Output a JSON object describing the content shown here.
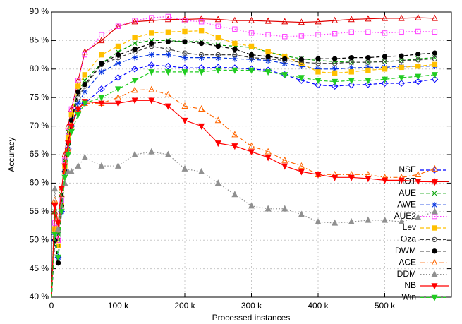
{
  "chart_data": {
    "type": "line",
    "ylabel": "Accuracy",
    "xlabel": "Processed instances",
    "x": [
      0,
      5000,
      10000,
      15000,
      20000,
      25000,
      30000,
      40000,
      50000,
      75000,
      100000,
      125000,
      150000,
      175000,
      200000,
      225000,
      250000,
      275000,
      300000,
      325000,
      350000,
      375000,
      400000,
      425000,
      450000,
      475000,
      500000,
      525000,
      550000,
      575000
    ],
    "xlim": [
      0,
      600000
    ],
    "xticks": [
      0,
      {
        "value": 100000,
        "label": "100 k"
      },
      {
        "value": 200000,
        "label": "200 k"
      },
      {
        "value": 300000,
        "label": "300 k"
      },
      {
        "value": 400000,
        "label": "400 k"
      },
      {
        "value": 500000,
        "label": "500 k"
      }
    ],
    "ylim": [
      40,
      90
    ],
    "yticks": [
      {
        "value": 40,
        "label": "40 %"
      },
      {
        "value": 45,
        "label": "45 %"
      },
      {
        "value": 50,
        "label": "50 %"
      },
      {
        "value": 55,
        "label": "55 %"
      },
      {
        "value": 60,
        "label": "60 %"
      },
      {
        "value": 65,
        "label": "65 %"
      },
      {
        "value": 70,
        "label": "70 %"
      },
      {
        "value": 75,
        "label": "75 %"
      },
      {
        "value": 80,
        "label": "80 %"
      },
      {
        "value": 85,
        "label": "85 %"
      },
      {
        "value": 90,
        "label": "90 %"
      }
    ],
    "grid": true,
    "legend": "right",
    "series": [
      {
        "name": "NSE",
        "color": "#0000ff",
        "marker": "diamond-open",
        "dash": "dashed",
        "values": [
          40,
          50,
          47,
          55,
          62,
          66,
          70,
          73,
          74,
          76.5,
          78.5,
          80,
          80.7,
          80.5,
          80.2,
          80.2,
          80.3,
          80.2,
          80,
          79.8,
          79,
          78,
          77.2,
          77,
          77.2,
          77.3,
          77.5,
          77.5,
          77.8,
          78.2
        ]
      },
      {
        "name": "HOT",
        "color": "#e00000",
        "marker": "triangle-open",
        "dash": "solid",
        "values": [
          40,
          55,
          50,
          58,
          65,
          70,
          73,
          78,
          83,
          85,
          87.5,
          88.3,
          88.5,
          88.7,
          88.7,
          88.8,
          88.7,
          88.5,
          88.5,
          88.4,
          88.3,
          88.2,
          88.3,
          88.5,
          88.7,
          88.8,
          88.9,
          88.9,
          89,
          88.9
        ]
      },
      {
        "name": "AUE",
        "color": "#00a000",
        "marker": "x",
        "dash": "dashed",
        "values": [
          40,
          55,
          51,
          58,
          64,
          69,
          72,
          76,
          78,
          81,
          83,
          84.5,
          85,
          85,
          84.8,
          84.8,
          84.2,
          84,
          83.8,
          83,
          82.3,
          81.8,
          81.5,
          81.3,
          81.2,
          81.2,
          81.3,
          81.5,
          81.8,
          82
        ]
      },
      {
        "name": "AWE",
        "color": "#0030e0",
        "marker": "star",
        "dash": "dashed",
        "values": [
          40,
          51,
          47,
          55,
          62,
          67,
          70,
          74,
          76,
          79.5,
          81,
          82,
          82.5,
          82.5,
          82,
          82,
          82,
          81.8,
          81.7,
          81.5,
          81,
          80.5,
          80,
          80,
          80.2,
          80.3,
          80.3,
          80.5,
          80.5,
          80.5
        ]
      },
      {
        "name": "AUE2",
        "color": "#ff40ff",
        "marker": "square-open",
        "dash": "dotted",
        "values": [
          40,
          53,
          50,
          57,
          64,
          69,
          73,
          78,
          82.5,
          86,
          87.5,
          88.5,
          89,
          89.2,
          88.5,
          88.3,
          87.5,
          87,
          86.3,
          86,
          85.7,
          85.8,
          86,
          86.2,
          86.5,
          86.5,
          86.3,
          86.5,
          86.6,
          86.5
        ]
      },
      {
        "name": "Lev",
        "color": "#ffc000",
        "marker": "square-filled",
        "dash": "dashed",
        "values": [
          40,
          52,
          49,
          56,
          63,
          68,
          72,
          77,
          79,
          82.5,
          84,
          85.5,
          86.3,
          86.5,
          86.6,
          86.7,
          85.5,
          84.5,
          84,
          83,
          82.2,
          81,
          79.5,
          79.3,
          79.5,
          79.8,
          80,
          80.3,
          80.5,
          80.8
        ]
      },
      {
        "name": "Oza",
        "color": "#404040",
        "marker": "circle-open",
        "dash": "dashed",
        "values": [
          40,
          50,
          46,
          56,
          62,
          67,
          71,
          75,
          77,
          80.8,
          82,
          83,
          84,
          83.5,
          82.8,
          82.5,
          82.5,
          82.5,
          82,
          81.8,
          81.5,
          81.2,
          81,
          81,
          81.2,
          81.2,
          81.3,
          81.5,
          81.6,
          81.8
        ]
      },
      {
        "name": "DWM",
        "color": "#000000",
        "marker": "circle-filled",
        "dash": "dashed",
        "values": [
          40,
          50,
          46,
          56,
          62,
          67,
          71,
          76,
          77.3,
          81,
          82.5,
          83.5,
          84.5,
          84.8,
          84.8,
          84.5,
          84,
          83.5,
          82.5,
          82.2,
          81.8,
          81.7,
          81.8,
          81.8,
          82,
          82,
          82.2,
          82.3,
          82.6,
          82.8
        ]
      },
      {
        "name": "ACE",
        "color": "#ff6600",
        "marker": "triangle-open",
        "dash": "dashdot",
        "values": [
          40,
          57,
          52,
          59,
          62,
          66,
          70,
          73,
          74,
          74,
          75,
          76.3,
          76.4,
          75.5,
          73.5,
          73,
          71,
          68.5,
          66.5,
          65.5,
          64,
          63,
          61.5,
          61.5,
          61.5,
          61.5,
          61,
          61,
          61.5,
          62.5
        ]
      },
      {
        "name": "DDM",
        "color": "#909090",
        "marker": "triangle-filled",
        "dash": "dotted",
        "values": [
          40,
          59,
          52,
          56,
          60,
          62,
          62,
          63,
          64.5,
          63,
          63,
          65,
          65.5,
          65,
          62.5,
          62,
          60,
          58,
          56,
          55.5,
          55.5,
          54.5,
          53.2,
          53,
          53.2,
          53.5,
          53.5,
          53.2,
          54,
          55
        ]
      },
      {
        "name": "NB",
        "color": "#ff0000",
        "marker": "invtriangle-filled",
        "dash": "solid",
        "values": [
          40,
          56,
          53,
          59,
          63,
          67,
          70,
          73,
          74.3,
          74,
          74,
          74.5,
          74.5,
          73.5,
          71,
          70,
          67,
          66.5,
          65.5,
          64.5,
          63,
          62,
          61.5,
          61,
          61,
          60.8,
          60.5,
          60.5,
          60.3,
          60.2
        ]
      },
      {
        "name": "Win",
        "color": "#22cc22",
        "marker": "invtriangle-filled",
        "dash": "dashed",
        "values": [
          40,
          51,
          47,
          55,
          61,
          65,
          69,
          72,
          74,
          75,
          76.5,
          78,
          79.5,
          79.5,
          79.5,
          79.5,
          79.8,
          79.8,
          79.8,
          79.5,
          79,
          78.5,
          78,
          77.8,
          78,
          78,
          78.2,
          78.5,
          78.7,
          79
        ]
      }
    ]
  }
}
